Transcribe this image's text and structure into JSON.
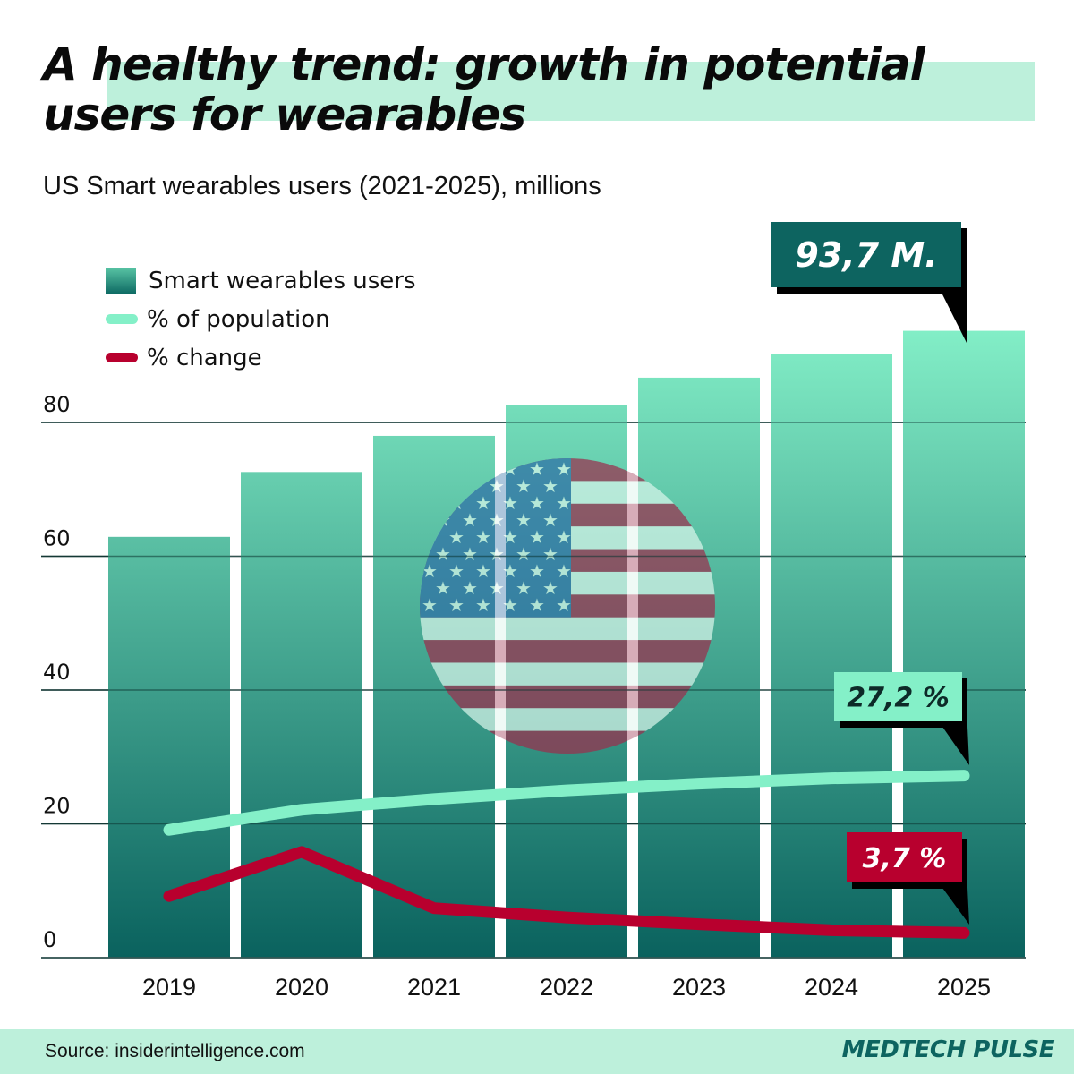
{
  "header": {
    "title_line1": "A healthy trend: growth in potential",
    "title_line2": "users for wearables",
    "subtitle": "US Smart wearables users (2021-2025), millions"
  },
  "legend": [
    {
      "label": "Smart wearables users",
      "type": "bar",
      "color": "#2a9a84"
    },
    {
      "label": "% of population",
      "type": "line",
      "color": "#84f0c8"
    },
    {
      "label": "% change",
      "type": "line",
      "color": "#b8002e"
    }
  ],
  "callouts": {
    "users_2025": "93,7 M.",
    "population_2025": "27,2 %",
    "change_2025": "3,7 %"
  },
  "footer": {
    "source": "Source: insiderintelligence.com",
    "brand": "MEDTECH PULSE"
  },
  "colors": {
    "bar_top": "#84f0c8",
    "bar_bottom": "#0a625e",
    "population_line": "#84f0c8",
    "change_line": "#b8002e",
    "callout_dark": "#0d6460",
    "highlight": "#bdf0db"
  },
  "chart_data": {
    "type": "bar",
    "title": "A healthy trend: growth in potential users for wearables",
    "subtitle": "US Smart wearables users (2021-2025), millions",
    "xlabel": "",
    "ylabel": "",
    "categories": [
      "2019",
      "2020",
      "2021",
      "2022",
      "2023",
      "2024",
      "2025"
    ],
    "ylim": [
      0,
      95
    ],
    "yticks": [
      0,
      20,
      40,
      60,
      80
    ],
    "grid": true,
    "legend_position": "top-left",
    "series": [
      {
        "name": "Smart wearables users",
        "type": "bar",
        "values": [
          62.9,
          72.6,
          78.0,
          82.6,
          86.7,
          90.3,
          93.7
        ]
      },
      {
        "name": "% of population",
        "type": "line",
        "values": [
          19.1,
          22.1,
          23.7,
          25.0,
          26.0,
          26.8,
          27.2
        ]
      },
      {
        "name": "% change",
        "type": "line",
        "values": [
          9.2,
          15.8,
          7.4,
          6.0,
          5.0,
          4.1,
          3.7
        ]
      }
    ],
    "annotations": [
      {
        "series": "Smart wearables users",
        "category": "2025",
        "text": "93,7 M."
      },
      {
        "series": "% of population",
        "category": "2025",
        "text": "27,2 %"
      },
      {
        "series": "% change",
        "category": "2025",
        "text": "3,7 %"
      }
    ]
  }
}
